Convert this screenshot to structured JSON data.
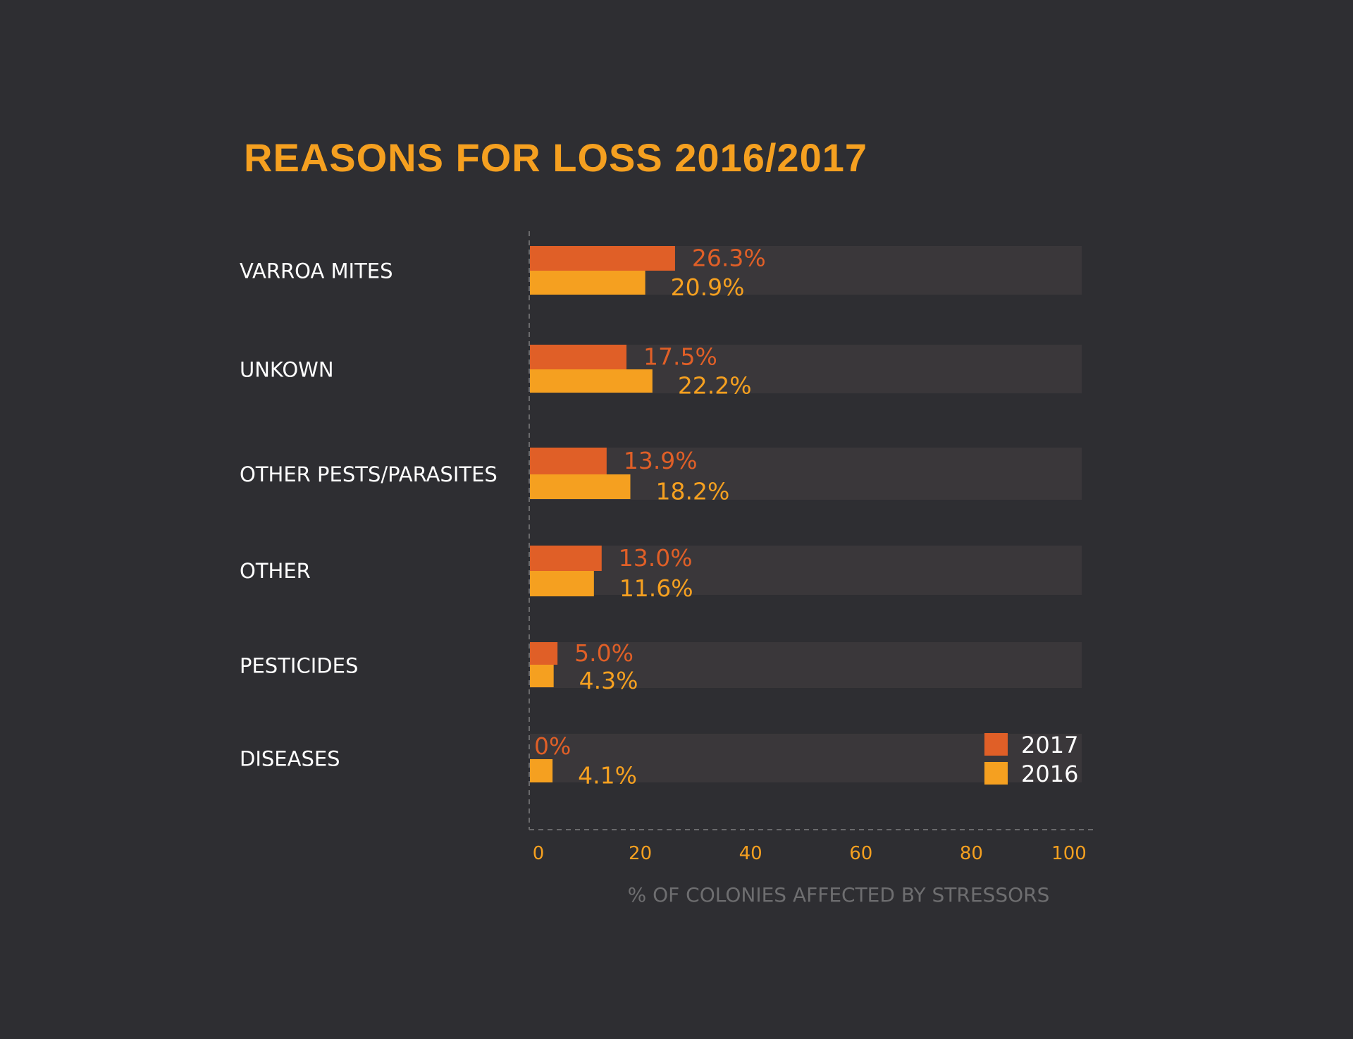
{
  "colors": {
    "background": "#2e2e32",
    "track": "#3a373a",
    "series_2017": "#e05f27",
    "series_2016": "#f5a020",
    "title": "#f5a020",
    "tick": "#f5a020",
    "axis_title": "#6e6e70",
    "gridline": "#6a6a6c"
  },
  "chart_data": {
    "type": "bar",
    "orientation": "horizontal",
    "title": "REASONS FOR LOSS 2016/2017",
    "xlabel": "% OF COLONIES AFFECTED BY STRESSORS",
    "ylabel": "",
    "xlim": [
      0,
      100
    ],
    "xticks": [
      0,
      20,
      40,
      60,
      80,
      100
    ],
    "grid": false,
    "legend": "bottom-right",
    "categories": [
      "VARROA MITES",
      "UNKOWN",
      "OTHER PESTS/PARASITES",
      "OTHER",
      "PESTICIDES",
      "DISEASES"
    ],
    "series": [
      {
        "name": "2017",
        "values": [
          26.3,
          17.5,
          13.9,
          13.0,
          5.0,
          0
        ],
        "labels": [
          "26.3%",
          "17.5%",
          "13.9%",
          "13.0%",
          "5.0%",
          "0%"
        ]
      },
      {
        "name": "2016",
        "values": [
          20.9,
          22.2,
          18.2,
          11.6,
          4.3,
          4.1
        ],
        "labels": [
          "20.9%",
          "22.2%",
          "18.2%",
          "11.6%",
          "4.3%",
          "4.1%"
        ]
      }
    ]
  }
}
